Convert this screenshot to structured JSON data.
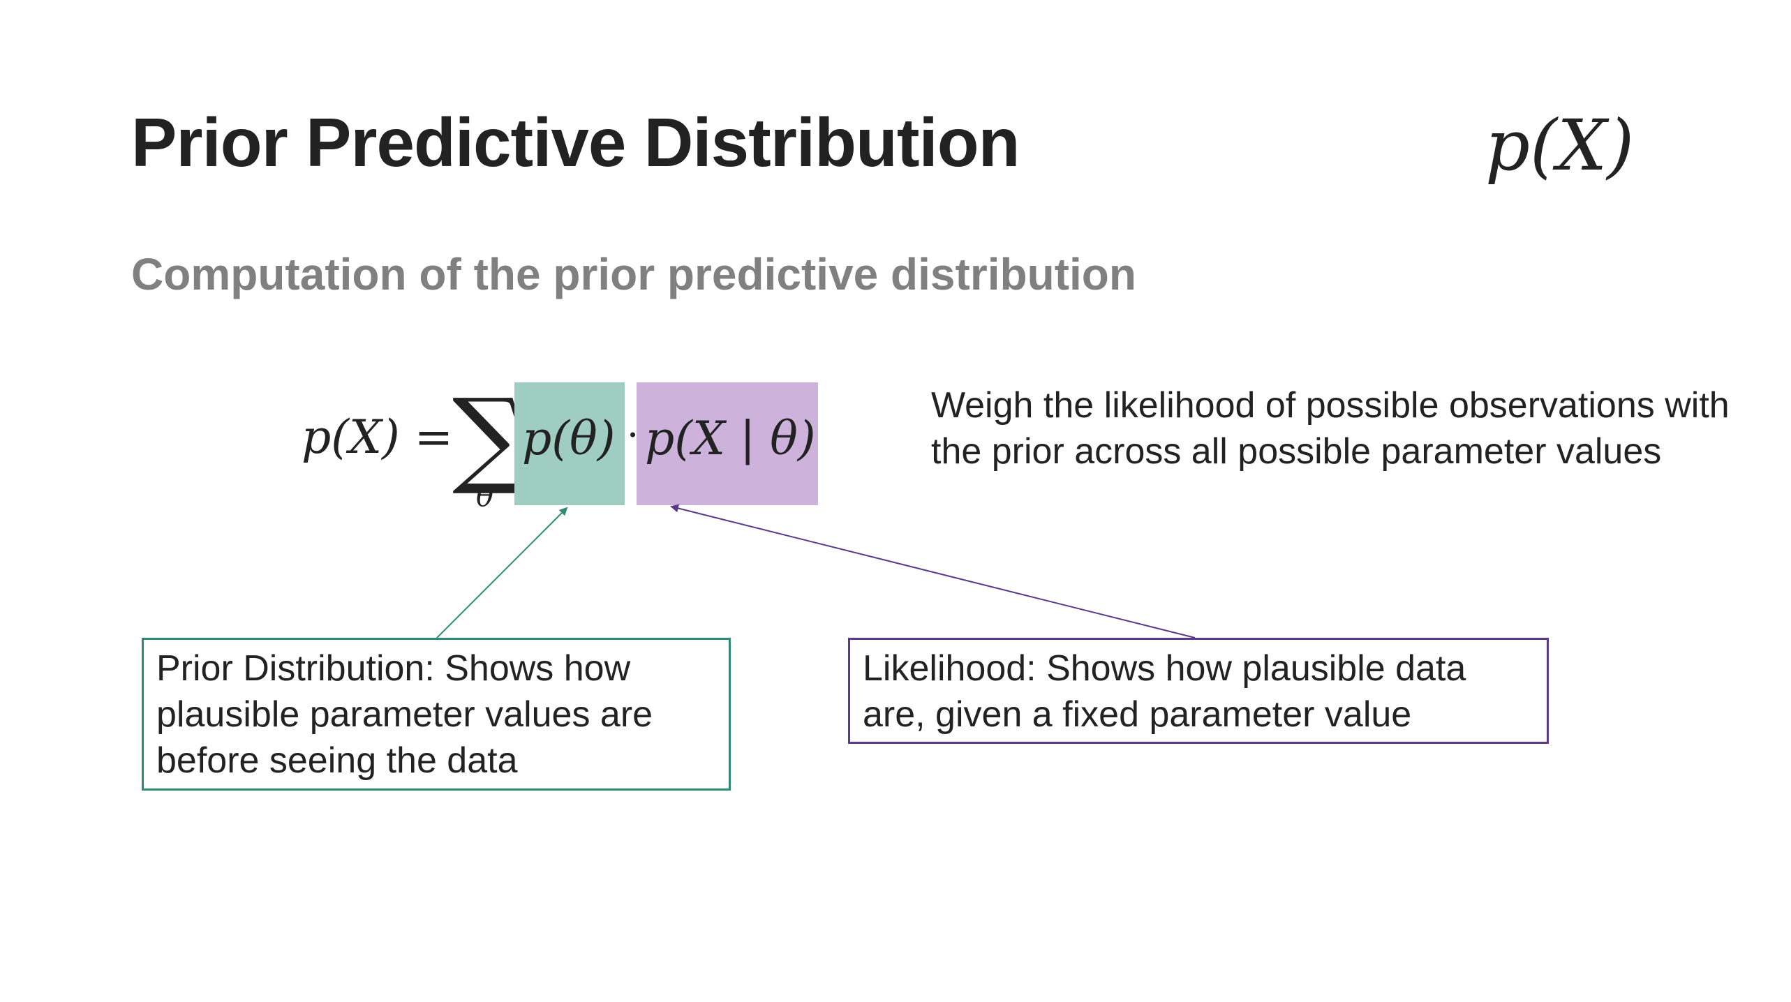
{
  "slide": {
    "title": "Prior Predictive Distribution",
    "corner_formula": "p(X)",
    "subtitle": "Computation of the prior predictive distribution"
  },
  "formula": {
    "lhs": "p(X) =",
    "sum_symbol": "∑",
    "sum_index": "θ",
    "prior_term": "p(θ)",
    "dot": "·",
    "likelihood_term": "p(X | θ)"
  },
  "explanation": "Weigh the likelihood of possible observations with the prior across all possible parameter values",
  "callouts": {
    "prior": "Prior Distribution: Shows how plausible parameter values are before seeing the data",
    "likelihood": "Likelihood: Shows how plausible data are, given a fixed parameter value"
  },
  "colors": {
    "prior_fill": "#9fcdc2",
    "prior_border": "#2e8b74",
    "likelihood_fill": "#cdb3dc",
    "likelihood_border": "#5b3a8c"
  }
}
